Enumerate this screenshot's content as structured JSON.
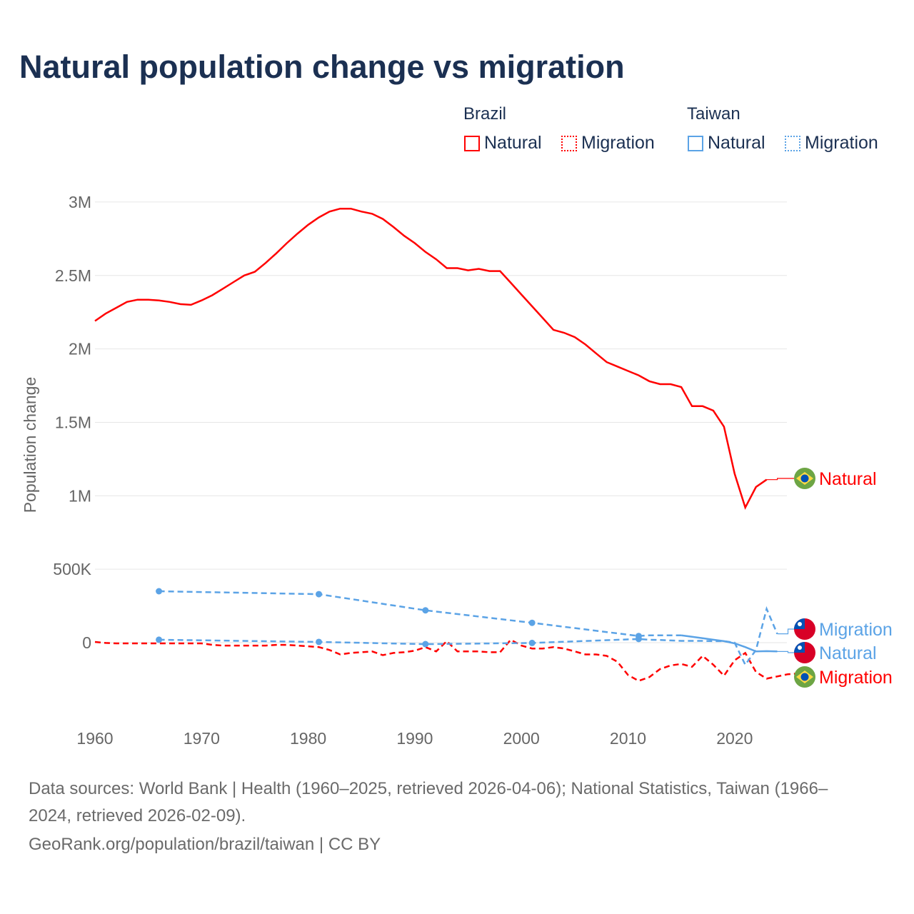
{
  "title": "Natural population change vs migration",
  "legend": {
    "groups": [
      {
        "name": "Brazil",
        "items": [
          "Natural",
          "Migration"
        ]
      },
      {
        "name": "Taiwan",
        "items": [
          "Natural",
          "Migration"
        ]
      }
    ]
  },
  "colors": {
    "brazil": "#ff0000",
    "taiwan": "#5ba3e6",
    "grid": "#e6e6e6",
    "axis_text": "#666666"
  },
  "chart_data": {
    "type": "line",
    "title": "Natural population change vs migration",
    "xlabel": "",
    "ylabel": "Population change",
    "xlim": [
      1960,
      2025
    ],
    "ylim": [
      -0.45,
      3.0
    ],
    "x_ticks": [
      "1960",
      "1970",
      "1980",
      "1990",
      "2000",
      "2010",
      "2020"
    ],
    "y_ticks": [
      {
        "v": 3,
        "label": "3M"
      },
      {
        "v": 2.5,
        "label": "2.5M"
      },
      {
        "v": 2,
        "label": "2M"
      },
      {
        "v": 1.5,
        "label": "1.5M"
      },
      {
        "v": 1,
        "label": "1M"
      },
      {
        "v": 0.5,
        "label": "500K"
      },
      {
        "v": 0,
        "label": "0"
      }
    ],
    "units": "millions",
    "series": [
      {
        "name": "Brazil Natural",
        "country": "Brazil",
        "kind": "Natural",
        "label": "Natural",
        "flag": "brazil-flag",
        "start": 1960,
        "values": [
          2.19,
          2.24,
          2.28,
          2.32,
          2.335,
          2.335,
          2.33,
          2.32,
          2.305,
          2.3,
          2.33,
          2.365,
          2.41,
          2.455,
          2.5,
          2.525,
          2.585,
          2.65,
          2.72,
          2.785,
          2.845,
          2.895,
          2.935,
          2.955,
          2.955,
          2.935,
          2.92,
          2.885,
          2.83,
          2.77,
          2.72,
          2.66,
          2.61,
          2.55,
          2.55,
          2.535,
          2.545,
          2.53,
          2.53,
          2.45,
          2.37,
          2.29,
          2.21,
          2.13,
          2.11,
          2.08,
          2.03,
          1.97,
          1.91,
          1.88,
          1.85,
          1.82,
          1.78,
          1.76,
          1.76,
          1.74,
          1.61,
          1.61,
          1.58,
          1.47,
          1.15,
          0.92,
          1.06,
          1.11
        ]
      },
      {
        "name": "Brazil Migration",
        "country": "Brazil",
        "kind": "Migration",
        "label": "Migration",
        "flag": "brazil-flag",
        "start": 1960,
        "values": [
          0.005,
          -0.002,
          -0.005,
          -0.005,
          -0.005,
          -0.005,
          -0.005,
          -0.005,
          -0.005,
          -0.005,
          -0.005,
          -0.015,
          -0.02,
          -0.02,
          -0.02,
          -0.02,
          -0.02,
          -0.015,
          -0.015,
          -0.02,
          -0.025,
          -0.03,
          -0.05,
          -0.08,
          -0.07,
          -0.065,
          -0.06,
          -0.085,
          -0.07,
          -0.065,
          -0.055,
          -0.03,
          -0.06,
          0.01,
          -0.06,
          -0.06,
          -0.06,
          -0.065,
          -0.065,
          0.02,
          -0.02,
          -0.04,
          -0.04,
          -0.03,
          -0.04,
          -0.06,
          -0.08,
          -0.08,
          -0.09,
          -0.13,
          -0.22,
          -0.26,
          -0.235,
          -0.18,
          -0.155,
          -0.145,
          -0.165,
          -0.09,
          -0.15,
          -0.225,
          -0.12,
          -0.07,
          -0.2,
          -0.245,
          -0.23,
          -0.215,
          -0.21
        ]
      },
      {
        "name": "Taiwan Natural",
        "country": "Taiwan",
        "kind": "Natural",
        "label": "Natural",
        "flag": "taiwan-flag",
        "points": [
          [
            1966,
            0.35
          ],
          [
            1981,
            0.33
          ],
          [
            1991,
            0.22
          ],
          [
            2001,
            0.135
          ],
          [
            2011,
            0.045
          ],
          [
            2012,
            0.05
          ],
          [
            2013,
            0.05
          ],
          [
            2014,
            0.05
          ],
          [
            2015,
            0.05
          ],
          [
            2016,
            0.04
          ],
          [
            2017,
            0.03
          ],
          [
            2018,
            0.02
          ],
          [
            2019,
            0.01
          ],
          [
            2020,
            -0.005
          ],
          [
            2021,
            -0.03
          ],
          [
            2022,
            -0.06
          ],
          [
            2023,
            -0.058
          ],
          [
            2024,
            -0.06
          ]
        ]
      },
      {
        "name": "Taiwan Migration",
        "country": "Taiwan",
        "kind": "Migration",
        "label": "Migration",
        "flag": "taiwan-flag",
        "points": [
          [
            1966,
            0.02
          ],
          [
            1981,
            0.005
          ],
          [
            1991,
            -0.01
          ],
          [
            2001,
            -0.002
          ],
          [
            2011,
            0.025
          ],
          [
            2012,
            0.02
          ],
          [
            2013,
            0.018
          ],
          [
            2014,
            0.015
          ],
          [
            2015,
            0.012
          ],
          [
            2016,
            0.012
          ],
          [
            2017,
            0.012
          ],
          [
            2018,
            0.01
          ],
          [
            2019,
            0.01
          ],
          [
            2020,
            0.0
          ],
          [
            2021,
            -0.15
          ],
          [
            2022,
            -0.05
          ],
          [
            2023,
            0.23
          ],
          [
            2024,
            0.06
          ]
        ]
      }
    ]
  },
  "footer": {
    "line1": "Data sources: World Bank | Health (1960–2025, retrieved 2026-04-06); National Statistics, Taiwan (1966–",
    "line2": "2024, retrieved 2026-02-09).",
    "line3": "GeoRank.org/population/brazil/taiwan | CC BY"
  }
}
